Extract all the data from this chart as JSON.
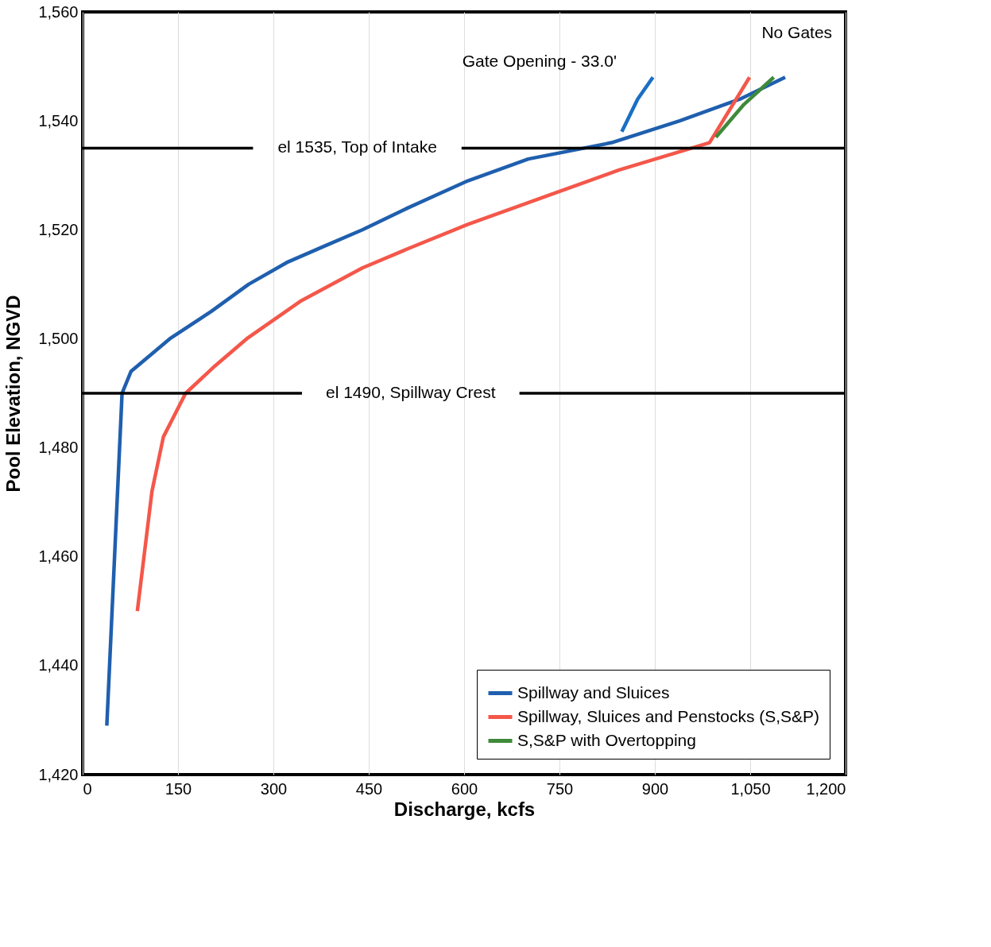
{
  "chart_data": {
    "type": "line",
    "xlabel": "Discharge, kcfs",
    "ylabel": "Pool Elevation, NGVD",
    "xlim": [
      0,
      1200
    ],
    "xticks": [
      0,
      150,
      300,
      450,
      600,
      750,
      900,
      {
        "value": 1050,
        "label": "1,050"
      },
      {
        "value": 1200,
        "label": "1,200"
      }
    ],
    "ylim": [
      1420,
      1560
    ],
    "yticks": [
      {
        "value": 1420,
        "label": "1,420"
      },
      {
        "value": 1440,
        "label": "1,440"
      },
      {
        "value": 1460,
        "label": "1,460"
      },
      {
        "value": 1480,
        "label": "1,480"
      },
      {
        "value": 1500,
        "label": "1,500"
      },
      {
        "value": 1520,
        "label": "1,520"
      },
      {
        "value": 1540,
        "label": "1,540"
      },
      {
        "value": 1560,
        "label": "1,560"
      }
    ],
    "grid": "x",
    "legend": "bottom right",
    "line_style": "solid",
    "marker": "none",
    "series": [
      {
        "name": "Spillway and Sluices",
        "color": "#1f5fae",
        "x": [
          38,
          62,
          76,
          137,
          202,
          261,
          321,
          380,
          440,
          511,
          606,
          701,
          832,
          939,
          1034,
          1105
        ],
        "values": [
          1429,
          1490,
          1494,
          1500,
          1505,
          1510,
          1514,
          1517,
          1520,
          1524,
          1529,
          1533,
          1536,
          1540,
          1544,
          1548
        ]
      },
      {
        "color": "#1a6fc4",
        "x": [
          848,
          873,
          897
        ],
        "values": [
          1538,
          1544,
          1548
        ]
      },
      {
        "name": "Spillway, Sluices and Penstocks (S,S&P)",
        "color": "#f4574a",
        "x": [
          86,
          109,
          127,
          162,
          208,
          258,
          344,
          440,
          511,
          606,
          725,
          844,
          958,
          986,
          1049
        ],
        "values": [
          1450,
          1472,
          1482,
          1490,
          1495,
          1500,
          1507,
          1513,
          1516.5,
          1521,
          1526,
          1531,
          1535,
          1536,
          1548
        ]
      },
      {
        "name": "S,S&P with Overtopping",
        "color": "#3e8a3a",
        "x": [
          996,
          1040,
          1087
        ],
        "values": [
          1537,
          1543,
          1548
        ]
      }
    ],
    "ref_lines": [
      {
        "axis": "y",
        "value": 1535,
        "label": "el 1535, Top of Intake",
        "color": "#000000"
      },
      {
        "axis": "y",
        "value": 1490,
        "label": "el 1490, Spillway Crest",
        "color": "#000000"
      }
    ],
    "annotations": [
      "Gate Opening - 33.0'",
      "No Gates"
    ]
  }
}
